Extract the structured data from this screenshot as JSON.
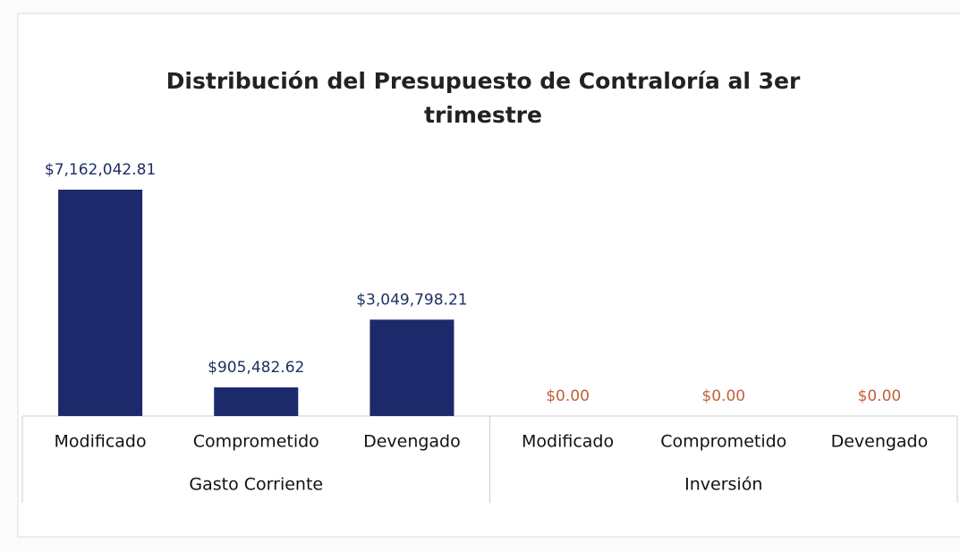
{
  "chart_data": {
    "type": "bar",
    "title": [
      "Distribución del Presupuesto de Contraloría al 3er",
      "trimestre"
    ],
    "groups": [
      "Gasto Corriente",
      "Inversión"
    ],
    "categories": [
      "Modificado",
      "Comprometido",
      "Devengado",
      "Modificado",
      "Comprometido",
      "Devengado"
    ],
    "values": [
      7162042.81,
      905482.62,
      3049798.21,
      0,
      0,
      0
    ],
    "value_labels": [
      "$7,162,042.81",
      "$905,482.62",
      "$3,049,798.21",
      "$0.00",
      "$0.00",
      "$0.00"
    ],
    "color": "#1c2a6b",
    "value_label_colors": [
      "#1f3060",
      "#1f3060",
      "#1f3060",
      "#c0603a",
      "#c0603a",
      "#c0603a"
    ]
  }
}
